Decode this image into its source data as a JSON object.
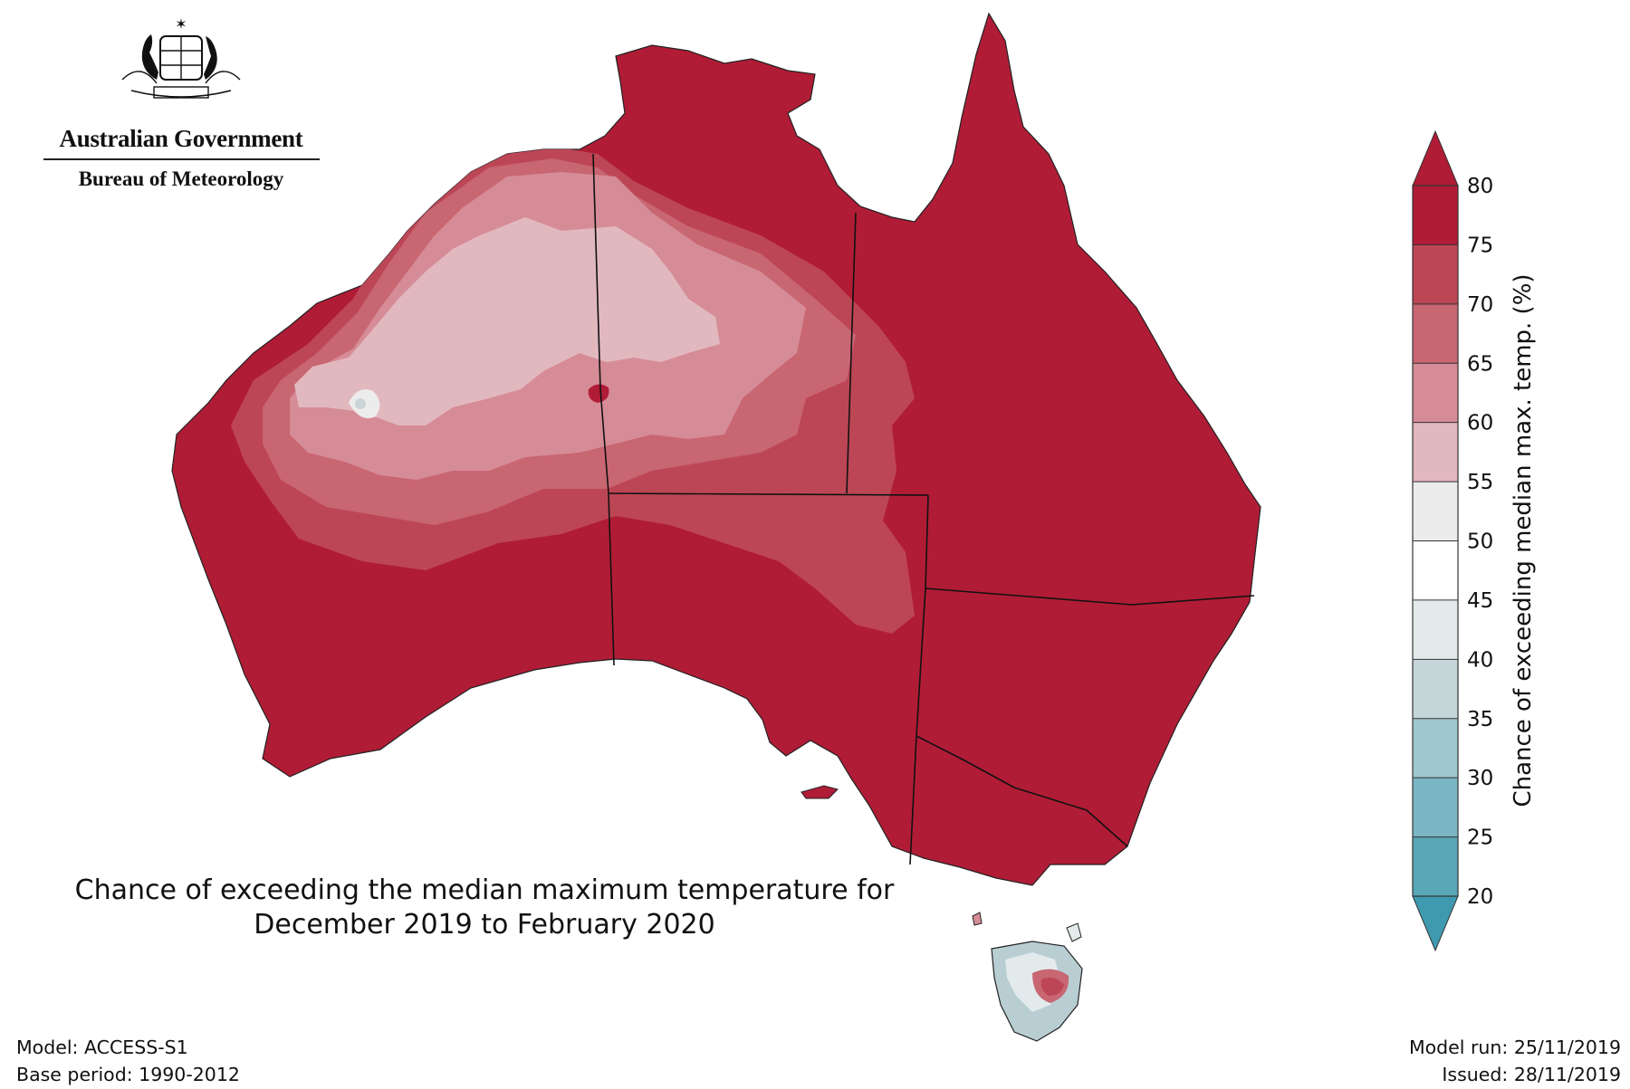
{
  "branding": {
    "government": "Australian Government",
    "bureau": "Bureau of Meteorology"
  },
  "title": {
    "line1": "Chance of exceeding the median maximum temperature for",
    "line2": "December 2019 to February 2020"
  },
  "model_info": {
    "model": "Model: ACCESS-S1",
    "base_period": "Base period: 1990-2012",
    "model_run": "Model run: 25/11/2019",
    "issued": "Issued: 28/11/2019"
  },
  "colorbar": {
    "title": "Chance of exceeding median max. temp. (%)",
    "ticks": [
      "20",
      "25",
      "30",
      "35",
      "40",
      "45",
      "50",
      "55",
      "60",
      "65",
      "70",
      "75",
      "80"
    ],
    "colors": [
      "#5aa7b8",
      "#7bb6c4",
      "#9fc7cf",
      "#c5d6d9",
      "#e3eaec",
      "#ffffff",
      "#ececec",
      "#e2b8bf",
      "#d68c97",
      "#c86672",
      "#bd4656",
      "#b01c36"
    ],
    "under_color": "#3f9ab0",
    "over_color": "#b01c36"
  },
  "map": {
    "region": "Australia",
    "land_color": "#b01c36",
    "zones": [
      {
        "name": "70-75",
        "color": "#bd4656"
      },
      {
        "name": "65-70",
        "color": "#c86672"
      },
      {
        "name": "60-65",
        "color": "#d68c97"
      },
      {
        "name": "55-60",
        "color": "#e2b8bf"
      },
      {
        "name": "45-55",
        "color": "#ececec"
      },
      {
        "name": "tas-low",
        "color": "#b8ced3"
      }
    ]
  }
}
